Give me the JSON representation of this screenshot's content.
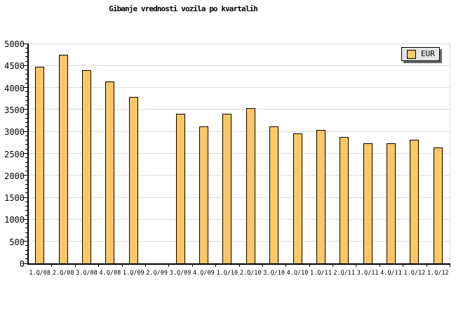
{
  "title": "Gibanje vrednosti vozila po kvartalih",
  "legend": {
    "label": "EUR"
  },
  "chart_data": {
    "type": "bar",
    "title": "Gibanje vrednosti vozila po kvartalih",
    "xlabel": "",
    "ylabel": "",
    "categories": [
      "1.Q/08",
      "2.Q/08",
      "3.Q/08",
      "4.Q/08",
      "1.Q/09",
      "2.Q/09",
      "3.Q/09",
      "4.Q/09",
      "1.Q/10",
      "2.Q/10",
      "3.Q/10",
      "4.Q/10",
      "1.Q/11",
      "2.Q/11",
      "3.Q/11",
      "4.Q/11",
      "1.Q/12",
      "1.Q/12"
    ],
    "series": [
      {
        "name": "EUR",
        "values": [
          4470,
          4750,
          4400,
          4140,
          3790,
          null,
          3410,
          3120,
          3410,
          3530,
          3110,
          2960,
          3030,
          2870,
          2740,
          2740,
          2820,
          2630
        ]
      }
    ],
    "ylim": [
      0,
      5000
    ],
    "ytick_major": 500,
    "ytick_minor": 100,
    "grid": "horizontal-major",
    "legend_position": "top-right",
    "colors": {
      "bar_fill": "#FDC766",
      "bar_border": "#000000",
      "grid": "#DCDCDC",
      "axis": "#000000",
      "legend_bg": "#E4E4E4",
      "legend_shadow": "#696969",
      "background": "#FFFFFF"
    }
  }
}
